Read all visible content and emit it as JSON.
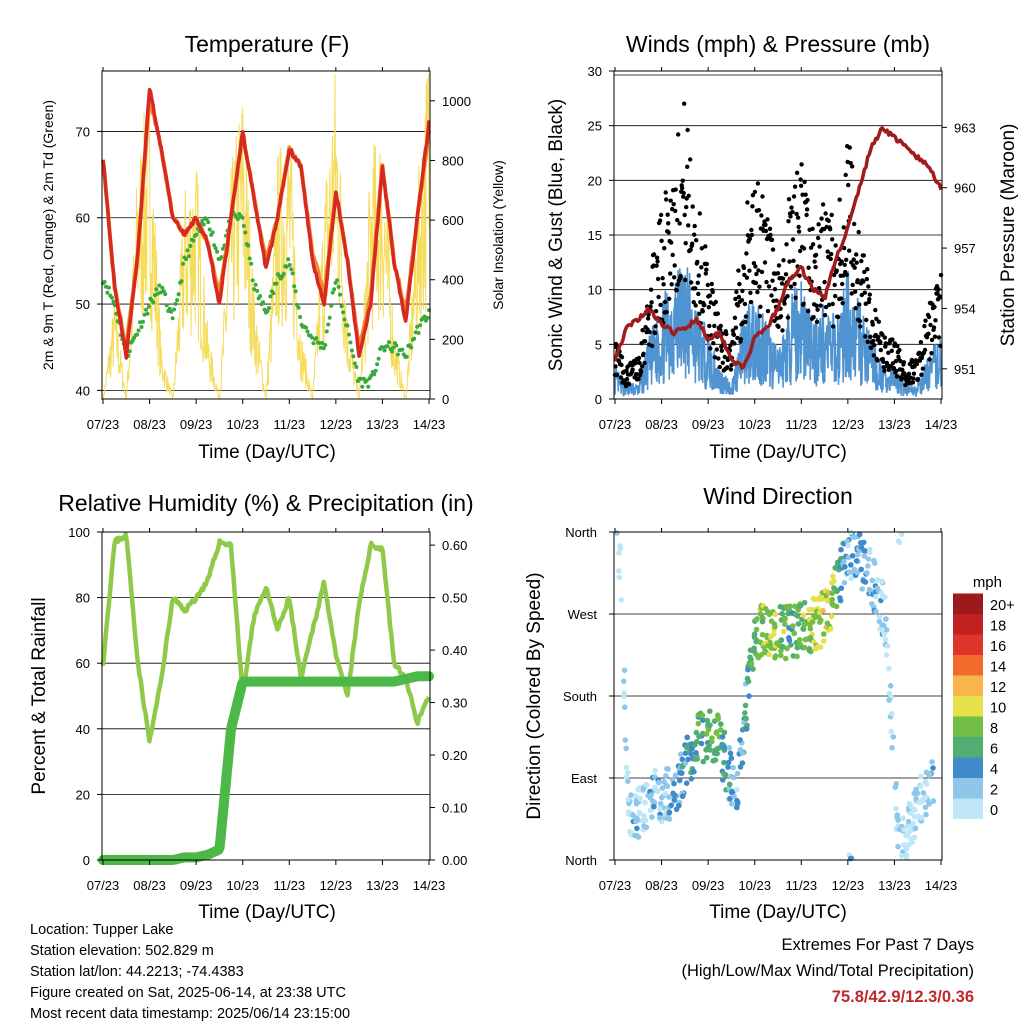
{
  "x_ticks": [
    "07/23",
    "08/23",
    "09/23",
    "10/23",
    "11/23",
    "12/23",
    "13/23",
    "14/23"
  ],
  "panels": {
    "temperature": {
      "title": "Temperature (F)",
      "xlabel": "Time (Day/UTC)",
      "ylabel_left": "2m & 9m T (Red, Orange) & 2m Td (Green)",
      "ylabel_right": "Solar Insolation (Yellow)",
      "left_ticks": [
        "40",
        "50",
        "60",
        "70"
      ],
      "right_ticks": [
        "0",
        "200",
        "400",
        "600",
        "800",
        "1000"
      ]
    },
    "winds": {
      "title": "Winds (mph) & Pressure (mb)",
      "xlabel": "Time (Day/UTC)",
      "ylabel_left": "Sonic Wind & Gust (Blue, Black)",
      "ylabel_right": "Station Pressure (Maroon)",
      "left_ticks": [
        "0",
        "5",
        "10",
        "15",
        "20",
        "25",
        "30"
      ],
      "right_ticks": [
        "951",
        "954",
        "957",
        "960",
        "963"
      ]
    },
    "humidity": {
      "title": "Relative Humidity (%) & Precipitation (in)",
      "xlabel": "Time (Day/UTC)",
      "ylabel_left": "Percent & Total Rainfall",
      "left_ticks": [
        "0",
        "20",
        "40",
        "60",
        "80",
        "100"
      ],
      "right_ticks": [
        "0.00",
        "0.10",
        "0.20",
        "0.30",
        "0.40",
        "0.50",
        "0.60"
      ]
    },
    "direction": {
      "title": "Wind Direction",
      "xlabel": "Time (Day/UTC)",
      "ylabel_left": "Direction (Colored By Speed)",
      "dir_ticks": [
        "North",
        "East",
        "South",
        "West",
        "North"
      ],
      "legend_title": "mph",
      "legend_labels": [
        "0",
        "2",
        "4",
        "6",
        "8",
        "10",
        "12",
        "14",
        "16",
        "18",
        "20+"
      ],
      "legend_colors": [
        "#bfe6f7",
        "#8ec7ea",
        "#3f8ac8",
        "#51ad72",
        "#72bd44",
        "#e6e04a",
        "#f7b54a",
        "#f06a2c",
        "#e0342b",
        "#c0201f",
        "#9e1a1a"
      ]
    }
  },
  "info": {
    "location": "Location: Tupper Lake",
    "elevation": "Station elevation: 502.829 m",
    "latlon": "Station lat/lon: 44.2213; -74.4383",
    "created": "Figure created on Sat, 2025-06-14, at 23:38 UTC",
    "recent": "Most recent data timestamp: 2025/06/14 23:15:00"
  },
  "extremes": {
    "line1": "Extremes For Past 7 Days",
    "line2": "(High/Low/Max Wind/Total Precipitation)",
    "values": "75.8/42.9/12.3/0.36"
  },
  "colors": {
    "temp_2m": "#d62a20",
    "temp_9m": "#f08a30",
    "dewpoint": "#3aa83a",
    "solar": "#f5dc5a",
    "wind": "#4f93d0",
    "gust": "#000000",
    "pressure": "#a01c1c",
    "rh": "#8fc94a",
    "precip": "#4cb848"
  },
  "chart_data": [
    {
      "type": "line",
      "title": "Temperature (F)",
      "xlabel": "Time (Day/UTC)",
      "ylabel": "2m & 9m T (Red, Orange) & 2m Td (Green)",
      "y2label": "Solar Insolation (Yellow)",
      "x_days": [
        0,
        0.25,
        0.5,
        0.75,
        1,
        1.25,
        1.5,
        1.75,
        2,
        2.25,
        2.5,
        2.75,
        3,
        3.25,
        3.5,
        3.75,
        4,
        4.25,
        4.5,
        4.75,
        5,
        5.25,
        5.5,
        5.75,
        6,
        6.25,
        6.5,
        6.75,
        7
      ],
      "ylim": [
        39,
        77
      ],
      "y2lim": [
        0,
        1100
      ],
      "series": [
        {
          "name": "2m T",
          "values": [
            67,
            52,
            44,
            56,
            75,
            68,
            60,
            58,
            60,
            57,
            50,
            60,
            70,
            62,
            54,
            60,
            68,
            66,
            55,
            50,
            63,
            55,
            44,
            50,
            66,
            55,
            48,
            60,
            71
          ]
        },
        {
          "name": "9m T",
          "values": [
            67,
            52,
            45,
            56,
            74,
            68,
            60,
            58,
            60,
            57,
            51,
            60,
            70,
            62,
            55,
            60,
            68,
            66,
            56,
            51,
            63,
            55,
            45,
            51,
            66,
            55,
            49,
            60,
            70
          ]
        },
        {
          "name": "2m Td",
          "values": [
            53,
            50,
            44,
            47,
            50,
            52,
            48,
            55,
            58,
            60,
            55,
            60,
            60,
            52,
            49,
            53,
            55,
            48,
            46,
            45,
            53,
            47,
            41,
            41,
            45,
            45,
            44,
            47,
            49
          ]
        },
        {
          "name": "Solar",
          "values": [
            0,
            300,
            0,
            700,
            900,
            150,
            0,
            600,
            700,
            200,
            0,
            650,
            900,
            300,
            0,
            700,
            800,
            200,
            0,
            600,
            1000,
            250,
            0,
            700,
            800,
            200,
            0,
            600,
            1050
          ]
        }
      ]
    },
    {
      "type": "scatter",
      "title": "Winds (mph) & Pressure (mb)",
      "xlabel": "Time (Day/UTC)",
      "ylabel": "Sonic Wind & Gust (Blue, Black)",
      "y2label": "Station Pressure (Maroon)",
      "x_days": [
        0,
        0.25,
        0.5,
        0.75,
        1,
        1.25,
        1.5,
        1.75,
        2,
        2.25,
        2.5,
        2.75,
        3,
        3.25,
        3.5,
        3.75,
        4,
        4.25,
        4.5,
        4.75,
        5,
        5.25,
        5.5,
        5.75,
        6,
        6.25,
        6.5,
        6.75,
        7
      ],
      "ylim": [
        0,
        30
      ],
      "y2lim": [
        949.5,
        965.8
      ],
      "series": [
        {
          "name": "Wind",
          "values": [
            2,
            1,
            1,
            4,
            6,
            8,
            9,
            6,
            4,
            2,
            1,
            5,
            7,
            5,
            3,
            6,
            8,
            5,
            6,
            5,
            8,
            6,
            4,
            2,
            2,
            1,
            1,
            3,
            4
          ]
        },
        {
          "name": "Gust",
          "values": [
            4,
            2,
            3,
            8,
            12,
            16,
            19,
            13,
            9,
            5,
            4,
            11,
            15,
            12,
            8,
            13,
            16,
            11,
            13,
            11,
            17,
            11,
            7,
            4,
            4,
            2,
            3,
            6,
            8
          ]
        },
        {
          "name": "Pressure",
          "values": [
            951.5,
            953.0,
            953.5,
            954.0,
            953.2,
            952.8,
            953.0,
            953.5,
            952.5,
            952.8,
            951.5,
            951.0,
            952.5,
            953.0,
            954.0,
            955.5,
            956.0,
            955.0,
            954.5,
            956.5,
            958.0,
            960.0,
            962.0,
            963.0,
            962.5,
            962.0,
            961.5,
            961.0,
            960.0
          ]
        }
      ]
    },
    {
      "type": "line",
      "title": "Relative Humidity (%) & Precipitation (in)",
      "xlabel": "Time (Day/UTC)",
      "ylabel": "Percent & Total Rainfall",
      "x_days": [
        0,
        0.25,
        0.5,
        0.75,
        1,
        1.25,
        1.5,
        1.75,
        2,
        2.25,
        2.5,
        2.75,
        3,
        3.25,
        3.5,
        3.75,
        4,
        4.25,
        4.5,
        4.75,
        5,
        5.25,
        5.5,
        5.75,
        6,
        6.25,
        6.5,
        6.75,
        7
      ],
      "ylim": [
        0,
        100
      ],
      "y2lim": [
        0,
        0.625
      ],
      "series": [
        {
          "name": "RH",
          "values": [
            60,
            97,
            99,
            60,
            36,
            55,
            80,
            76,
            80,
            85,
            97,
            96,
            50,
            75,
            83,
            70,
            80,
            55,
            70,
            85,
            62,
            50,
            78,
            96,
            95,
            60,
            55,
            42,
            50
          ]
        },
        {
          "name": "Precip",
          "values": [
            0,
            0,
            0,
            0,
            0,
            0,
            0,
            0.005,
            0.005,
            0.01,
            0.02,
            0.25,
            0.34,
            0.34,
            0.34,
            0.34,
            0.34,
            0.34,
            0.34,
            0.34,
            0.34,
            0.34,
            0.34,
            0.34,
            0.34,
            0.34,
            0.345,
            0.35,
            0.35
          ]
        }
      ]
    },
    {
      "type": "scatter",
      "title": "Wind Direction",
      "xlabel": "Time (Day/UTC)",
      "ylabel": "Direction (Colored By Speed)",
      "ylim": [
        0,
        360
      ],
      "x_days": [
        0.1,
        0.3,
        0.9,
        1.3,
        1.8,
        2.2,
        2.6,
        3.0,
        3.4,
        3.8,
        4.2,
        4.6,
        5.0,
        5.4,
        5.8,
        6.1,
        6.4,
        6.8
      ],
      "series": [
        {
          "name": "Direction",
          "values": [
            340,
            40,
            70,
            75,
            135,
            135,
            70,
            250,
            250,
            250,
            255,
            270,
            340,
            320,
            270,
            10,
            50,
            90
          ]
        },
        {
          "name": "Speed",
          "values": [
            1,
            2,
            3,
            4,
            7,
            8,
            3,
            8,
            10,
            7,
            9,
            11,
            3,
            4,
            2,
            2,
            1,
            3
          ]
        }
      ]
    }
  ]
}
